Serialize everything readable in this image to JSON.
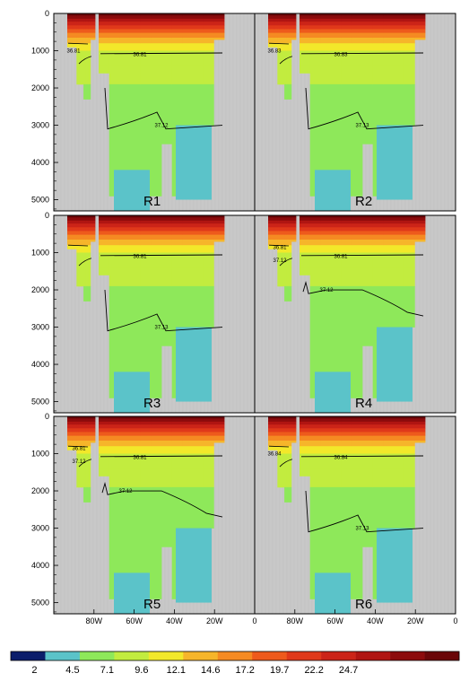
{
  "chart_data": {
    "type": "heatmap",
    "layout": "3 rows x 2 columns of depth-longitude section panels",
    "x_axis": {
      "ticks": [
        "80W",
        "60W",
        "40W",
        "20W",
        "0"
      ],
      "tick_values": [
        -80,
        -60,
        -40,
        -20,
        0
      ]
    },
    "y_axis": {
      "ticks": [
        "0",
        "1000",
        "2000",
        "3000",
        "4000",
        "5000"
      ],
      "tick_values": [
        0,
        1000,
        2000,
        3000,
        4000,
        5000
      ],
      "inverted": true,
      "ylim": [
        5300,
        0
      ]
    },
    "colorbar": {
      "labels": [
        "2",
        "4.5",
        "7.1",
        "9.6",
        "12.1",
        "14.6",
        "17.2",
        "19.7",
        "22.2",
        "24.7"
      ],
      "colors": [
        "#0b1d6b",
        "#5bc3c9",
        "#8ee85a",
        "#c2ec3f",
        "#f2e82a",
        "#f6b52a",
        "#f58a22",
        "#ee5a1c",
        "#e0391a",
        "#cc2418",
        "#b01512",
        "#8c0b0c",
        "#6a0608"
      ]
    },
    "land_color": "#c8c8c8",
    "panels": [
      {
        "label": "R1",
        "contours": [
          {
            "value": "36.81",
            "depth_m": 1000
          },
          {
            "value": "36.81",
            "depth_m": 1100
          },
          {
            "value": "37.12",
            "depth_m": 3000
          }
        ]
      },
      {
        "label": "R2",
        "contours": [
          {
            "value": "36.83",
            "depth_m": 1000
          },
          {
            "value": "36.83",
            "depth_m": 1100
          },
          {
            "value": "37.13",
            "depth_m": 2900
          }
        ]
      },
      {
        "label": "R3",
        "contours": [
          {
            "value": "",
            "depth_m": 900
          },
          {
            "value": "36.81",
            "depth_m": 1100
          },
          {
            "value": "37.13",
            "depth_m": 2900
          }
        ]
      },
      {
        "label": "R4",
        "contours": [
          {
            "value": "36.81",
            "depth_m": 850
          },
          {
            "value": "37.12",
            "depth_m": 1200
          },
          {
            "value": "36.81",
            "depth_m": 1100
          },
          {
            "value": "37.12",
            "depth_m": 2000
          }
        ]
      },
      {
        "label": "R5",
        "contours": [
          {
            "value": "36.81",
            "depth_m": 850
          },
          {
            "value": "37.12",
            "depth_m": 1200
          },
          {
            "value": "36.81",
            "depth_m": 1100
          },
          {
            "value": "37.12",
            "depth_m": 2000
          }
        ]
      },
      {
        "label": "R6",
        "contours": [
          {
            "value": "36.84",
            "depth_m": 1000
          },
          {
            "value": "36.84",
            "depth_m": 1100
          },
          {
            "value": "37.13",
            "depth_m": 2900
          }
        ]
      }
    ]
  }
}
